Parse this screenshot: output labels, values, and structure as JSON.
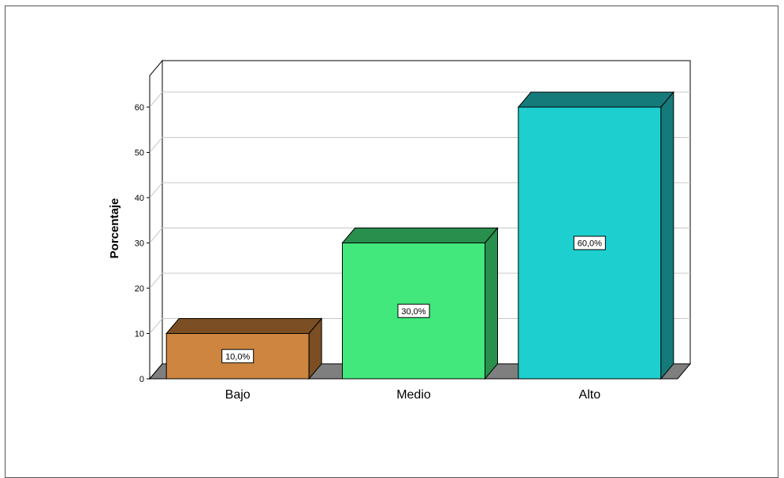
{
  "chart_data": {
    "type": "bar",
    "style": "3d",
    "categories": [
      "Bajo",
      "Medio",
      "Alto"
    ],
    "values": [
      10,
      30,
      60
    ],
    "data_labels": [
      "10,0%",
      "30,0%",
      "60,0%"
    ],
    "colors": [
      {
        "front": "#cd8540",
        "top": "#7b4f23",
        "side": "#7b4f23"
      },
      {
        "front": "#42e87c",
        "top": "#288f4d",
        "side": "#288f4d"
      },
      {
        "front": "#1ecfcf",
        "top": "#157a7a",
        "side": "#157a7a"
      }
    ],
    "floor_color": "#7f7f7f",
    "ylabel": "Porcentaje",
    "xlabel": "",
    "title": "",
    "ylim": [
      0,
      60
    ],
    "yticks": [
      0,
      10,
      20,
      30,
      40,
      50,
      60
    ],
    "grid": true,
    "legend": "none"
  }
}
